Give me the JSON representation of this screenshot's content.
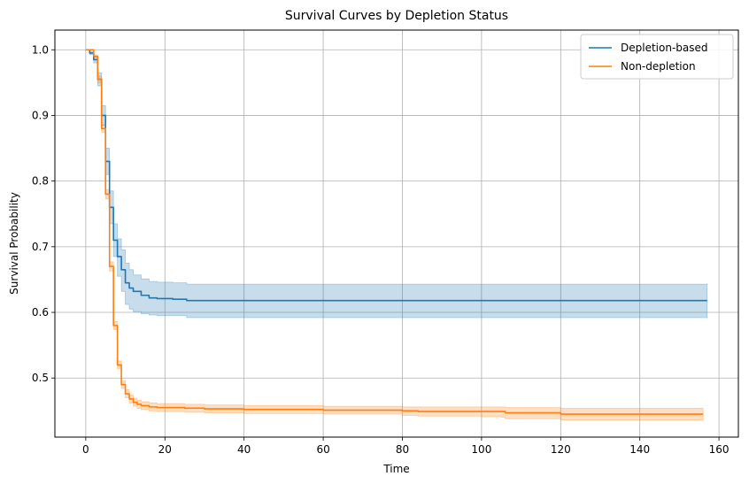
{
  "chart_data": {
    "type": "line",
    "title": "Survival Curves by Depletion Status",
    "xlabel": "Time",
    "ylabel": "Survival Probability",
    "xlim": [
      -7.8,
      164.9
    ],
    "ylim": [
      0.41,
      1.03
    ],
    "xticks": [
      0,
      20,
      40,
      60,
      80,
      100,
      120,
      140,
      160
    ],
    "yticks": [
      0.5,
      0.6,
      0.7,
      0.8,
      0.9,
      1.0
    ],
    "xtick_labels": [
      "0",
      "20",
      "40",
      "60",
      "80",
      "100",
      "120",
      "140",
      "160"
    ],
    "ytick_labels": [
      "0.5",
      "0.6",
      "0.7",
      "0.8",
      "0.9",
      "1.0"
    ],
    "grid": true,
    "legend_position": "top-right",
    "series": [
      {
        "name": "Depletion-based",
        "color": "#1f77b4",
        "band_color": "#1f77b4",
        "x": [
          0,
          1,
          2,
          3,
          4,
          5,
          6,
          7,
          8,
          9,
          10,
          11,
          12,
          14,
          16,
          18,
          20,
          22,
          25,
          25.5,
          40,
          60,
          80,
          100,
          120,
          140,
          157
        ],
        "y": [
          1.0,
          0.995,
          0.985,
          0.955,
          0.9,
          0.83,
          0.76,
          0.71,
          0.685,
          0.665,
          0.645,
          0.637,
          0.632,
          0.626,
          0.622,
          0.621,
          0.621,
          0.62,
          0.62,
          0.618,
          0.618,
          0.618,
          0.618,
          0.618,
          0.618,
          0.618,
          0.618
        ],
        "lower": [
          1.0,
          0.993,
          0.98,
          0.945,
          0.885,
          0.81,
          0.735,
          0.685,
          0.655,
          0.632,
          0.612,
          0.605,
          0.601,
          0.598,
          0.596,
          0.595,
          0.595,
          0.595,
          0.595,
          0.592,
          0.592,
          0.592,
          0.592,
          0.592,
          0.592,
          0.592,
          0.592
        ],
        "upper": [
          1.0,
          0.997,
          0.99,
          0.965,
          0.915,
          0.85,
          0.785,
          0.735,
          0.712,
          0.695,
          0.675,
          0.665,
          0.657,
          0.651,
          0.647,
          0.646,
          0.646,
          0.645,
          0.645,
          0.643,
          0.643,
          0.643,
          0.643,
          0.643,
          0.643,
          0.643,
          0.643
        ]
      },
      {
        "name": "Non-depletion",
        "color": "#ff7f0e",
        "band_color": "#ff7f0e",
        "x": [
          0,
          1,
          2,
          3,
          4,
          5,
          6,
          7,
          8,
          9,
          10,
          11,
          12,
          13,
          14,
          16,
          18,
          20,
          25,
          30,
          40,
          60,
          78,
          80,
          84,
          100,
          105,
          106,
          119,
          120,
          140,
          156
        ],
        "y": [
          1.0,
          1.0,
          0.99,
          0.955,
          0.88,
          0.78,
          0.67,
          0.58,
          0.52,
          0.49,
          0.476,
          0.468,
          0.463,
          0.46,
          0.458,
          0.456,
          0.455,
          0.455,
          0.454,
          0.453,
          0.452,
          0.451,
          0.451,
          0.45,
          0.449,
          0.449,
          0.449,
          0.447,
          0.447,
          0.445,
          0.445,
          0.445
        ],
        "lower": [
          1.0,
          1.0,
          0.988,
          0.95,
          0.874,
          0.773,
          0.663,
          0.574,
          0.514,
          0.484,
          0.47,
          0.462,
          0.457,
          0.454,
          0.452,
          0.45,
          0.449,
          0.449,
          0.448,
          0.447,
          0.446,
          0.445,
          0.445,
          0.443,
          0.442,
          0.441,
          0.44,
          0.438,
          0.438,
          0.436,
          0.436,
          0.436
        ],
        "upper": [
          1.0,
          1.0,
          0.992,
          0.96,
          0.886,
          0.787,
          0.677,
          0.586,
          0.526,
          0.496,
          0.482,
          0.474,
          0.469,
          0.466,
          0.464,
          0.462,
          0.461,
          0.461,
          0.46,
          0.459,
          0.458,
          0.457,
          0.457,
          0.456,
          0.456,
          0.456,
          0.456,
          0.455,
          0.455,
          0.454,
          0.454,
          0.454
        ]
      }
    ]
  }
}
